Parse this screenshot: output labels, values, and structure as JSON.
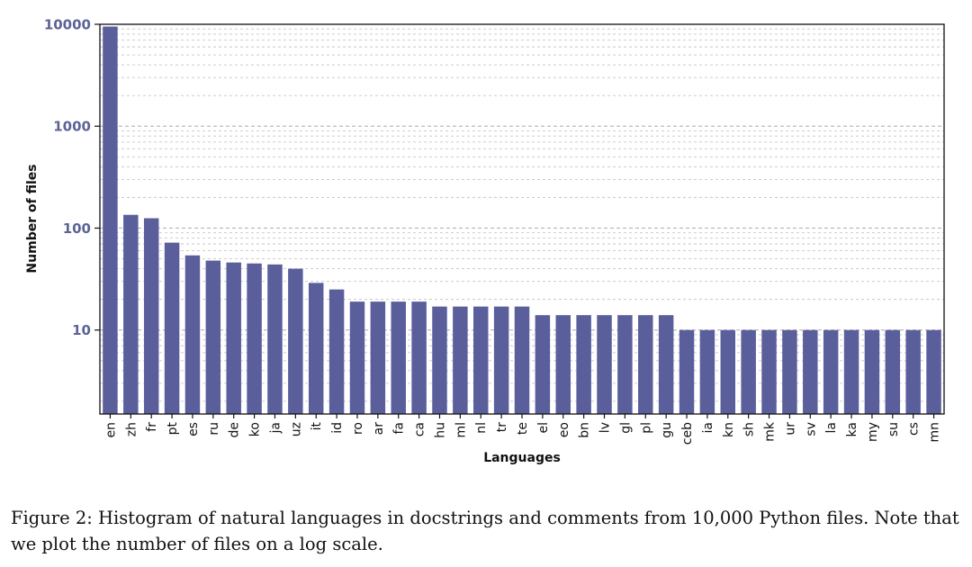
{
  "chart_data": {
    "type": "bar",
    "title": "",
    "xlabel": "Languages",
    "ylabel": "Number of files",
    "yscale": "log",
    "ylim": [
      1.5,
      10000
    ],
    "yticks": [
      10,
      100,
      1000,
      10000
    ],
    "ytick_labels": [
      "10",
      "100",
      "1000",
      "10000"
    ],
    "grid": "horizontal dashed (major and minor)",
    "bar_color": "#5a5e9a",
    "tick_label_color": "#5c6396",
    "categories": [
      "en",
      "zh",
      "fr",
      "pt",
      "es",
      "ru",
      "de",
      "ko",
      "ja",
      "uz",
      "it",
      "id",
      "ro",
      "ar",
      "fa",
      "ca",
      "hu",
      "ml",
      "nl",
      "tr",
      "te",
      "el",
      "eo",
      "bn",
      "lv",
      "gl",
      "pl",
      "gu",
      "ceb",
      "ia",
      "kn",
      "sh",
      "mk",
      "ur",
      "sv",
      "la",
      "ka",
      "my",
      "su",
      "cs",
      "mn"
    ],
    "values": [
      9500,
      135,
      125,
      72,
      54,
      48,
      46,
      45,
      44,
      40,
      29,
      25,
      19,
      19,
      19,
      19,
      17,
      17,
      17,
      17,
      17,
      14,
      14,
      14,
      14,
      14,
      14,
      14,
      10,
      10,
      10,
      10,
      10,
      10,
      10,
      10,
      10,
      10,
      10,
      10,
      10
    ]
  },
  "caption": {
    "text": "Figure 2: Histogram of natural languages in docstrings and comments from 10,000 Python files. Note that we plot the number of files on a log scale."
  }
}
